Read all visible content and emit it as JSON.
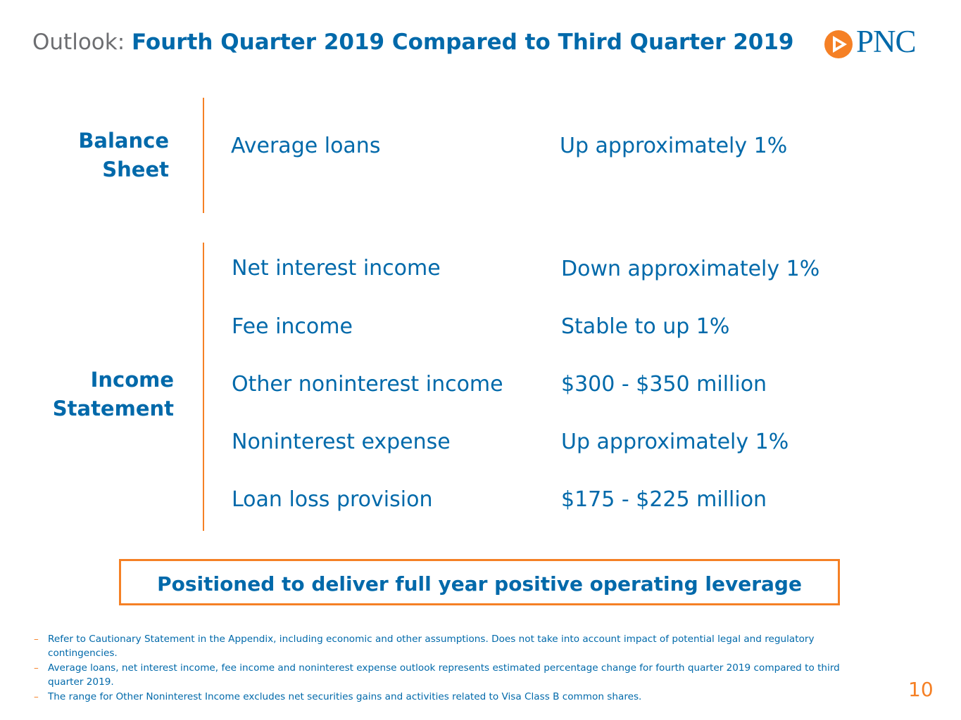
{
  "header": {
    "prefix": "Outlook:",
    "title": "Fourth Quarter 2019 Compared to Third Quarter 2019"
  },
  "logo": {
    "text": "PNC",
    "icon": "pnc-triangle-logo-icon",
    "brand_color": "#f58025"
  },
  "balance_sheet": {
    "label_line1": "Balance",
    "label_line2": "Sheet",
    "items": [
      {
        "label": "Average loans",
        "value": "Up approximately 1%"
      }
    ]
  },
  "income_statement": {
    "label_line1": "Income",
    "label_line2": "Statement",
    "items": [
      {
        "label": "Net interest income",
        "value": "Down approximately 1%"
      },
      {
        "label": "Fee income",
        "value": "Stable to up 1%"
      },
      {
        "label": "Other noninterest income",
        "value": "$300 - $350 million"
      },
      {
        "label": "Noninterest expense",
        "value": "Up approximately 1%"
      },
      {
        "label": "Loan loss provision",
        "value": "$175 - $225 million"
      }
    ]
  },
  "callout": {
    "text": "Positioned to deliver full year positive operating leverage"
  },
  "footnotes": [
    "Refer to Cautionary Statement in the Appendix, including economic and other assumptions. Does not take into account impact of potential legal and regulatory contingencies.",
    "Average loans, net interest income, fee income and noninterest expense outlook represents estimated percentage change for fourth quarter 2019 compared to third quarter 2019.",
    "The range for Other Noninterest Income excludes net securities gains and activities related to Visa Class B common shares."
  ],
  "page_number": "10",
  "colors": {
    "primary_blue": "#0069aa",
    "accent_orange": "#f58025",
    "gray": "#6d6e71"
  }
}
